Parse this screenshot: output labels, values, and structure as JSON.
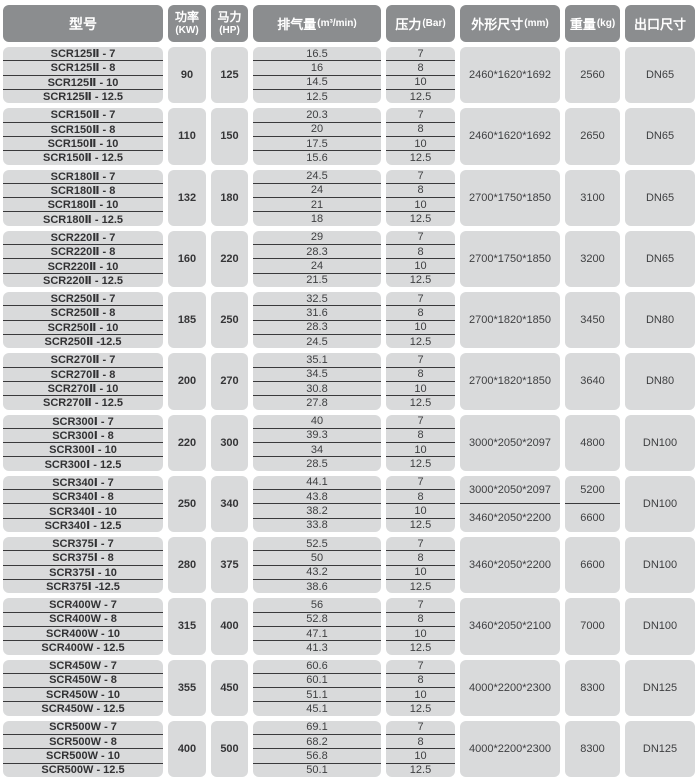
{
  "table": {
    "colors": {
      "header_bg": "#8b8d8f",
      "header_text": "#ffffff",
      "cell_bg": "#d9dadb",
      "body_text": "#3e3f41",
      "divider": "#39393b"
    },
    "header": {
      "columns": [
        {
          "main": "型号",
          "unit": ""
        },
        {
          "main": "功率",
          "unit": "(KW)"
        },
        {
          "main": "马力",
          "unit": "(HP)"
        },
        {
          "main": "排气量",
          "unit": "(m³/min)"
        },
        {
          "main": "压力",
          "unit": "(Bar)"
        },
        {
          "main": "外形尺寸",
          "unit": "(mm)"
        },
        {
          "main": "重量",
          "unit": "(kg)"
        },
        {
          "main": "出口尺寸",
          "unit": ""
        }
      ]
    }
  },
  "groups": [
    {
      "models": [
        "SCR125Ⅱ - 7",
        "SCR125Ⅱ - 8",
        "SCR125Ⅱ - 10",
        "SCR125Ⅱ - 12.5"
      ],
      "power": "90",
      "hp": "125",
      "displacement": [
        "16.5",
        "16",
        "14.5",
        "12.5"
      ],
      "pressure": [
        "7",
        "8",
        "10",
        "12.5"
      ],
      "dims": [
        "2460*1620*1692"
      ],
      "weight": [
        "2560"
      ],
      "outlet": "DN65"
    },
    {
      "models": [
        "SCR150Ⅱ - 7",
        "SCR150Ⅱ - 8",
        "SCR150Ⅱ - 10",
        "SCR150Ⅱ - 12.5"
      ],
      "power": "110",
      "hp": "150",
      "displacement": [
        "20.3",
        "20",
        "17.5",
        "15.6"
      ],
      "pressure": [
        "7",
        "8",
        "10",
        "12.5"
      ],
      "dims": [
        "2460*1620*1692"
      ],
      "weight": [
        "2650"
      ],
      "outlet": "DN65"
    },
    {
      "models": [
        "SCR180Ⅱ - 7",
        "SCR180Ⅱ - 8",
        "SCR180Ⅱ - 10",
        "SCR180Ⅱ - 12.5"
      ],
      "power": "132",
      "hp": "180",
      "displacement": [
        "24.5",
        "24",
        "21",
        "18"
      ],
      "pressure": [
        "7",
        "8",
        "10",
        "12.5"
      ],
      "dims": [
        "2700*1750*1850"
      ],
      "weight": [
        "3100"
      ],
      "outlet": "DN65"
    },
    {
      "models": [
        "SCR220Ⅱ - 7",
        "SCR220Ⅱ - 8",
        "SCR220Ⅱ - 10",
        "SCR220Ⅱ - 12.5"
      ],
      "power": "160",
      "hp": "220",
      "displacement": [
        "29",
        "28.3",
        "24",
        "21.5"
      ],
      "pressure": [
        "7",
        "8",
        "10",
        "12.5"
      ],
      "dims": [
        "2700*1750*1850"
      ],
      "weight": [
        "3200"
      ],
      "outlet": "DN65"
    },
    {
      "models": [
        "SCR250Ⅱ - 7",
        "SCR250Ⅱ - 8",
        "SCR250Ⅱ - 10",
        "SCR250Ⅱ -12.5"
      ],
      "power": "185",
      "hp": "250",
      "displacement": [
        "32.5",
        "31.6",
        "28.3",
        "24.5"
      ],
      "pressure": [
        "7",
        "8",
        "10",
        "12.5"
      ],
      "dims": [
        "2700*1820*1850"
      ],
      "weight": [
        "3450"
      ],
      "outlet": "DN80"
    },
    {
      "models": [
        "SCR270Ⅱ - 7",
        "SCR270Ⅱ - 8",
        "SCR270Ⅱ - 10",
        "SCR270Ⅱ - 12.5"
      ],
      "power": "200",
      "hp": "270",
      "displacement": [
        "35.1",
        "34.5",
        "30.8",
        "27.8"
      ],
      "pressure": [
        "7",
        "8",
        "10",
        "12.5"
      ],
      "dims": [
        "2700*1820*1850"
      ],
      "weight": [
        "3640"
      ],
      "outlet": "DN80"
    },
    {
      "models": [
        "SCR300Ⅰ - 7",
        "SCR300Ⅰ - 8",
        "SCR300Ⅰ - 10",
        "SCR300Ⅰ - 12.5"
      ],
      "power": "220",
      "hp": "300",
      "displacement": [
        "40",
        "39.3",
        "34",
        "28.5"
      ],
      "pressure": [
        "7",
        "8",
        "10",
        "12.5"
      ],
      "dims": [
        "3000*2050*2097"
      ],
      "weight": [
        "4800"
      ],
      "outlet": "DN100"
    },
    {
      "models": [
        "SCR340Ⅰ - 7",
        "SCR340Ⅰ - 8",
        "SCR340Ⅰ - 10",
        "SCR340Ⅰ - 12.5"
      ],
      "power": "250",
      "hp": "340",
      "displacement": [
        "44.1",
        "43.8",
        "38.2",
        "33.8"
      ],
      "pressure": [
        "7",
        "8",
        "10",
        "12.5"
      ],
      "dims": [
        "3000*2050*2097",
        "3460*2050*2200"
      ],
      "weight": [
        "5200",
        "6600"
      ],
      "outlet": "DN100"
    },
    {
      "models": [
        "SCR375Ⅰ - 7",
        "SCR375Ⅰ - 8",
        "SCR375Ⅰ - 10",
        "SCR375Ⅰ -12.5"
      ],
      "power": "280",
      "hp": "375",
      "displacement": [
        "52.5",
        "50",
        "43.2",
        "38.6"
      ],
      "pressure": [
        "7",
        "8",
        "10",
        "12.5"
      ],
      "dims": [
        "3460*2050*2200"
      ],
      "weight": [
        "6600"
      ],
      "outlet": "DN100"
    },
    {
      "models": [
        "SCR400W - 7",
        "SCR400W - 8",
        "SCR400W - 10",
        "SCR400W - 12.5"
      ],
      "power": "315",
      "hp": "400",
      "displacement": [
        "56",
        "52.8",
        "47.1",
        "41.3"
      ],
      "pressure": [
        "7",
        "8",
        "10",
        "12.5"
      ],
      "dims": [
        "3460*2050*2100"
      ],
      "weight": [
        "7000"
      ],
      "outlet": "DN100"
    },
    {
      "models": [
        "SCR450W - 7",
        "SCR450W - 8",
        "SCR450W - 10",
        "SCR450W - 12.5"
      ],
      "power": "355",
      "hp": "450",
      "displacement": [
        "60.6",
        "60.1",
        "51.1",
        "45.1"
      ],
      "pressure": [
        "7",
        "8",
        "10",
        "12.5"
      ],
      "dims": [
        "4000*2200*2300"
      ],
      "weight": [
        "8300"
      ],
      "outlet": "DN125"
    },
    {
      "models": [
        "SCR500W - 7",
        "SCR500W - 8",
        "SCR500W - 10",
        "SCR500W - 12.5"
      ],
      "power": "400",
      "hp": "500",
      "displacement": [
        "69.1",
        "68.2",
        "56.8",
        "50.1"
      ],
      "pressure": [
        "7",
        "8",
        "10",
        "12.5"
      ],
      "dims": [
        "4000*2200*2300"
      ],
      "weight": [
        "8300"
      ],
      "outlet": "DN125"
    }
  ]
}
